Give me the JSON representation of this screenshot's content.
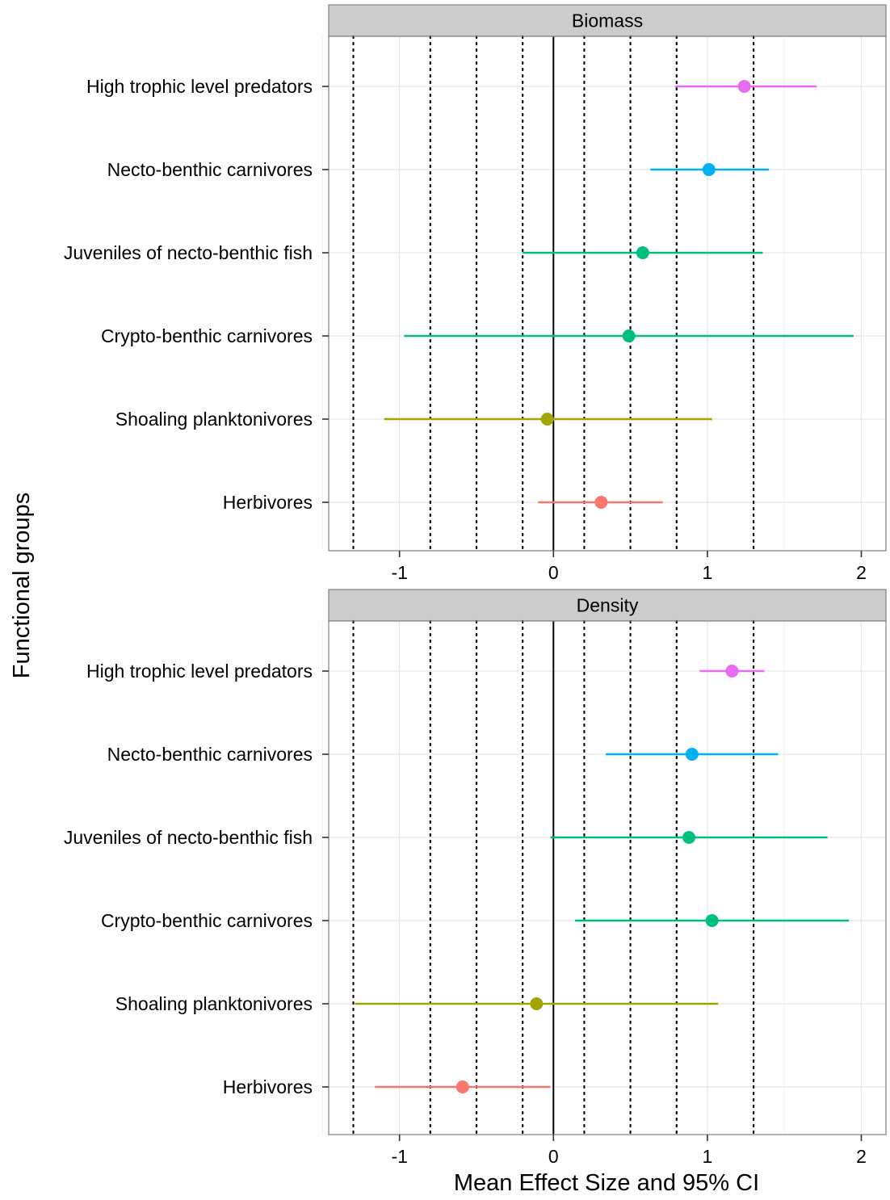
{
  "chart_data": {
    "type": "scatter",
    "y_axis_label": "Functional groups",
    "x_axis_label": "Mean Effect Size and 95% CI",
    "xlim": [
      -1.46,
      2.16
    ],
    "x_ticks": [
      -1,
      0,
      1,
      2
    ],
    "x_tick_labels": [
      "-1",
      "0",
      "1",
      "2"
    ],
    "vline_solid": 0,
    "vlines_dotted": [
      -1.3,
      -0.8,
      -0.5,
      -0.2,
      0.2,
      0.5,
      0.8,
      1.3
    ],
    "grid": true,
    "legend": "none",
    "categories": [
      "High trophic level predators",
      "Necto-benthic carnivores",
      "Juveniles of necto-benthic fish",
      "Crypto-benthic carnivores",
      "Shoaling planktonivores",
      "Herbivores"
    ],
    "colors": {
      "High trophic level predators": "#E76BF3",
      "Necto-benthic carnivores": "#00B0F6",
      "Juveniles of necto-benthic fish": "#00BF7D",
      "Crypto-benthic carnivores": "#00BF7D",
      "Shoaling planktonivores": "#A3A500",
      "Herbivores": "#F8766D"
    },
    "panels": [
      {
        "title": "Biomass",
        "points": [
          {
            "group": "High trophic level predators",
            "mean": 1.24,
            "lower": 0.79,
            "upper": 1.71
          },
          {
            "group": "Necto-benthic carnivores",
            "mean": 1.01,
            "lower": 0.63,
            "upper": 1.4
          },
          {
            "group": "Juveniles of necto-benthic fish",
            "mean": 0.58,
            "lower": -0.2,
            "upper": 1.36
          },
          {
            "group": "Crypto-benthic carnivores",
            "mean": 0.49,
            "lower": -0.97,
            "upper": 1.95
          },
          {
            "group": "Shoaling planktonivores",
            "mean": -0.04,
            "lower": -1.1,
            "upper": 1.03
          },
          {
            "group": "Herbivores",
            "mean": 0.31,
            "lower": -0.1,
            "upper": 0.71
          }
        ]
      },
      {
        "title": "Density",
        "points": [
          {
            "group": "High trophic level predators",
            "mean": 1.16,
            "lower": 0.95,
            "upper": 1.37
          },
          {
            "group": "Necto-benthic carnivores",
            "mean": 0.9,
            "lower": 0.34,
            "upper": 1.46
          },
          {
            "group": "Juveniles of necto-benthic fish",
            "mean": 0.88,
            "lower": -0.02,
            "upper": 1.78
          },
          {
            "group": "Crypto-benthic carnivores",
            "mean": 1.03,
            "lower": 0.14,
            "upper": 1.92
          },
          {
            "group": "Shoaling planktonivores",
            "mean": -0.11,
            "lower": -1.29,
            "upper": 1.07
          },
          {
            "group": "Herbivores",
            "mean": -0.59,
            "lower": -1.16,
            "upper": -0.02
          }
        ]
      }
    ]
  }
}
